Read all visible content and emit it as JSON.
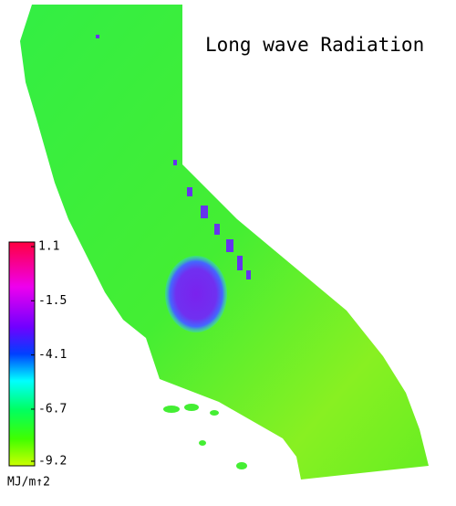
{
  "title": "Long wave Radiation",
  "colorbar": {
    "ticks": [
      1.1,
      -1.5,
      -4.1,
      -6.7,
      -9.2
    ],
    "unit": "MJ/m↑2"
  }
}
